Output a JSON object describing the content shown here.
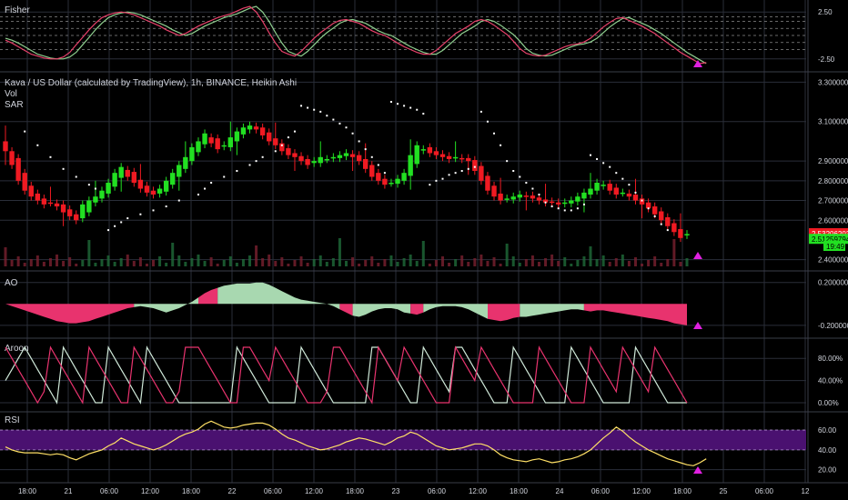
{
  "colors": {
    "background": "#000000",
    "text": "#d1d4dc",
    "grid": "#2a2e39",
    "separator": "#3a3e49",
    "bull": "#22e022",
    "bear": "#f01a22",
    "sar": "#ffffff",
    "fisher_main": "#e8416a",
    "fisher_trigger": "#8fcf8f",
    "ao_pos": "#a8d8b0",
    "ao_neg": "#e8336e",
    "aroon_up": "#e8336e",
    "aroon_down": "#cfe8d8",
    "rsi_line": "#ffe066",
    "rsi_band": "#4a1170",
    "alert_marker": "#e020e0",
    "volume": "#2e7d5b"
  },
  "x_axis": {
    "labels": [
      "18:00",
      "21",
      "06:00",
      "12:00",
      "18:00",
      "22",
      "06:00",
      "12:00",
      "18:00",
      "23",
      "06:00",
      "12:00",
      "18:00",
      "24",
      "06:00",
      "12:00",
      "18:00",
      "25",
      "06:00",
      "12"
    ],
    "positions": [
      30,
      75,
      120,
      165,
      210,
      255,
      300,
      345,
      390,
      435,
      480,
      525,
      570,
      615,
      660,
      705,
      750,
      795,
      840,
      885
    ]
  },
  "fisher": {
    "title": "Fisher",
    "y_ticks": [
      "2.50",
      "-2.50"
    ],
    "y_tick_values": [
      2.5,
      -2.5
    ],
    "y_min": -3.2,
    "y_max": 3.2,
    "dashed_levels": [
      2.0,
      1.5,
      0.75,
      0,
      -0.75,
      -1.5
    ],
    "main": [
      -0.5,
      -0.8,
      -1.2,
      -1.6,
      -2.0,
      -2.2,
      -2.4,
      -2.5,
      -2.5,
      -2.3,
      -1.8,
      -1.0,
      -0.2,
      0.6,
      1.3,
      1.9,
      2.2,
      2.4,
      2.5,
      2.4,
      2.2,
      1.9,
      1.6,
      1.3,
      1.0,
      0.6,
      0.3,
      0.0,
      0.2,
      0.6,
      1.0,
      1.3,
      1.6,
      1.9,
      2.1,
      2.3,
      2.6,
      2.9,
      3.1,
      2.5,
      1.5,
      0.3,
      -0.8,
      -1.7,
      -2.0,
      -2.2,
      -1.7,
      -1.0,
      -0.3,
      0.3,
      0.8,
      1.3,
      1.6,
      1.7,
      1.5,
      1.3,
      0.9,
      0.5,
      0.2,
      0.0,
      -0.4,
      -0.8,
      -1.2,
      -1.5,
      -1.8,
      -2.0,
      -2.0,
      -1.6,
      -1.0,
      -0.4,
      0.2,
      0.6,
      1.0,
      1.5,
      1.7,
      1.5,
      1.1,
      0.6,
      0.1,
      -0.6,
      -1.4,
      -1.9,
      -2.1,
      -2.2,
      -2.1,
      -1.8,
      -1.5,
      -1.2,
      -1.0,
      -0.9,
      -0.7,
      -0.3,
      0.3,
      0.9,
      1.4,
      1.8,
      1.9,
      1.6,
      1.3,
      1.0,
      0.6,
      0.2,
      -0.3,
      -0.8,
      -1.3,
      -1.8,
      -2.2,
      -2.6,
      -3.0,
      -2.9
    ],
    "trigger": [
      -0.3,
      -0.5,
      -0.8,
      -1.2,
      -1.6,
      -2.0,
      -2.2,
      -2.4,
      -2.5,
      -2.5,
      -2.3,
      -1.8,
      -1.0,
      -0.2,
      0.6,
      1.3,
      1.9,
      2.2,
      2.4,
      2.5,
      2.4,
      2.2,
      1.9,
      1.6,
      1.3,
      1.0,
      0.6,
      0.3,
      0.0,
      0.2,
      0.6,
      1.0,
      1.3,
      1.6,
      1.9,
      2.1,
      2.3,
      2.6,
      2.9,
      3.1,
      2.5,
      1.5,
      0.3,
      -0.8,
      -1.7,
      -2.0,
      -2.2,
      -1.7,
      -1.0,
      -0.3,
      0.3,
      0.8,
      1.3,
      1.6,
      1.7,
      1.5,
      1.3,
      0.9,
      0.5,
      0.2,
      0.0,
      -0.4,
      -0.8,
      -1.2,
      -1.5,
      -1.8,
      -2.0,
      -2.0,
      -1.6,
      -1.0,
      -0.4,
      0.2,
      0.6,
      1.0,
      1.5,
      1.7,
      1.5,
      1.1,
      0.6,
      0.1,
      -0.6,
      -1.4,
      -1.9,
      -2.1,
      -2.2,
      -2.1,
      -1.8,
      -1.5,
      -1.2,
      -1.0,
      -0.9,
      -0.7,
      -0.3,
      0.3,
      0.9,
      1.4,
      1.8,
      1.9,
      1.6,
      1.3,
      1.0,
      0.6,
      0.2,
      -0.3,
      -0.8,
      -1.3,
      -1.8,
      -2.2,
      -2.6,
      -3.0
    ]
  },
  "price": {
    "title": "Kava / US Dollar (calculated by TradingView), 1h, BINANCE, Heikin Ashi",
    "legend_vol": "Vol",
    "legend_sar": "SAR",
    "y_ticks": [
      "3.30000000",
      "3.10000000",
      "2.90000000",
      "2.80000000",
      "2.70000000",
      "2.60000000",
      "2.40000000"
    ],
    "y_tick_values": [
      3.3,
      3.1,
      2.9,
      2.8,
      2.7,
      2.6,
      2.4
    ],
    "y_min": 2.38,
    "y_max": 3.32,
    "current_close_label": "2.53206203",
    "current_open_label": "2.51259794",
    "countdown_label": "19:49",
    "current_close": 2.532,
    "current_open": 2.5126,
    "close_series": [
      2.95,
      2.88,
      2.8,
      2.75,
      2.72,
      2.7,
      2.68,
      2.69,
      2.67,
      2.64,
      2.62,
      2.6,
      2.68,
      2.7,
      2.72,
      2.75,
      2.79,
      2.84,
      2.87,
      2.82,
      2.79,
      2.76,
      2.74,
      2.73,
      2.76,
      2.8,
      2.84,
      2.88,
      2.92,
      2.97,
      3.0,
      3.04,
      2.99,
      2.96,
      2.98,
      3.02,
      3.05,
      3.07,
      3.08,
      3.06,
      3.03,
      3.0,
      2.98,
      2.95,
      2.93,
      2.92,
      2.9,
      2.88,
      2.9,
      2.92,
      2.91,
      2.92,
      2.93,
      2.94,
      2.92,
      2.9,
      2.86,
      2.82,
      2.8,
      2.78,
      2.79,
      2.81,
      2.84,
      2.93,
      2.98,
      2.96,
      2.94,
      2.93,
      2.92,
      2.91,
      2.92,
      2.91,
      2.9,
      2.85,
      2.8,
      2.75,
      2.72,
      2.7,
      2.71,
      2.72,
      2.73,
      2.72,
      2.71,
      2.7,
      2.69,
      2.69,
      2.68,
      2.69,
      2.7,
      2.72,
      2.74,
      2.76,
      2.79,
      2.78,
      2.75,
      2.73,
      2.74,
      2.72,
      2.7,
      2.68,
      2.66,
      2.63,
      2.6,
      2.57,
      2.54,
      2.51,
      2.53
    ],
    "sar_dots": [
      [
        3,
        3.05
      ],
      [
        5,
        2.98
      ],
      [
        7,
        2.92
      ],
      [
        9,
        2.86
      ],
      [
        11,
        2.82
      ],
      [
        13,
        2.78
      ],
      [
        14,
        2.76
      ],
      [
        16,
        2.55
      ],
      [
        17,
        2.57
      ],
      [
        18,
        2.59
      ],
      [
        19,
        2.61
      ],
      [
        21,
        2.63
      ],
      [
        23,
        2.65
      ],
      [
        25,
        2.67
      ],
      [
        27,
        2.7
      ],
      [
        30,
        2.73
      ],
      [
        31,
        2.76
      ],
      [
        32,
        2.79
      ],
      [
        34,
        2.82
      ],
      [
        36,
        2.85
      ],
      [
        38,
        2.88
      ],
      [
        39,
        2.9
      ],
      [
        40,
        2.92
      ],
      [
        42,
        2.95
      ],
      [
        43,
        2.98
      ],
      [
        44,
        3.02
      ],
      [
        45,
        3.05
      ],
      [
        46,
        3.18
      ],
      [
        47,
        3.17
      ],
      [
        48,
        3.16
      ],
      [
        49,
        3.15
      ],
      [
        50,
        3.13
      ],
      [
        51,
        3.11
      ],
      [
        52,
        3.09
      ],
      [
        53,
        3.07
      ],
      [
        54,
        3.04
      ],
      [
        55,
        3.0
      ],
      [
        56,
        2.96
      ],
      [
        57,
        2.92
      ],
      [
        58,
        2.88
      ],
      [
        59,
        2.84
      ],
      [
        60,
        3.2
      ],
      [
        61,
        3.19
      ],
      [
        62,
        3.18
      ],
      [
        63,
        3.17
      ],
      [
        64,
        3.16
      ],
      [
        65,
        3.14
      ],
      [
        66,
        2.78
      ],
      [
        67,
        2.8
      ],
      [
        68,
        2.81
      ],
      [
        69,
        2.83
      ],
      [
        70,
        2.84
      ],
      [
        71,
        2.85
      ],
      [
        72,
        2.86
      ],
      [
        73,
        2.87
      ],
      [
        74,
        3.15
      ],
      [
        75,
        3.1
      ],
      [
        76,
        3.04
      ],
      [
        77,
        2.98
      ],
      [
        78,
        2.9
      ],
      [
        79,
        2.85
      ],
      [
        80,
        2.82
      ],
      [
        81,
        2.79
      ],
      [
        82,
        2.76
      ],
      [
        83,
        2.73
      ],
      [
        84,
        2.69
      ],
      [
        85,
        2.67
      ],
      [
        86,
        2.66
      ],
      [
        87,
        2.65
      ],
      [
        88,
        2.65
      ],
      [
        89,
        2.66
      ],
      [
        90,
        2.68
      ],
      [
        91,
        2.93
      ],
      [
        92,
        2.91
      ],
      [
        93,
        2.89
      ],
      [
        94,
        2.87
      ],
      [
        95,
        2.84
      ],
      [
        96,
        2.81
      ],
      [
        97,
        2.78
      ],
      [
        98,
        2.74
      ],
      [
        99,
        2.7
      ],
      [
        100,
        2.66
      ],
      [
        101,
        2.62
      ],
      [
        102,
        2.58
      ],
      [
        103,
        2.55
      ]
    ]
  },
  "ao": {
    "title": "AO",
    "y_ticks": [
      "0.20000000",
      "-0.20000000"
    ],
    "y_tick_values": [
      0.2,
      -0.2
    ],
    "y_min": -0.26,
    "y_max": 0.24,
    "values": [
      0.0,
      -0.02,
      -0.04,
      -0.06,
      -0.08,
      -0.1,
      -0.12,
      -0.14,
      -0.16,
      -0.17,
      -0.18,
      -0.18,
      -0.17,
      -0.16,
      -0.14,
      -0.12,
      -0.1,
      -0.08,
      -0.06,
      -0.04,
      -0.03,
      -0.02,
      -0.03,
      -0.04,
      -0.06,
      -0.08,
      -0.06,
      -0.04,
      -0.01,
      0.02,
      0.06,
      0.1,
      0.13,
      0.15,
      0.17,
      0.18,
      0.19,
      0.19,
      0.19,
      0.2,
      0.2,
      0.18,
      0.15,
      0.12,
      0.09,
      0.06,
      0.04,
      0.03,
      0.02,
      0.01,
      0.0,
      -0.02,
      -0.05,
      -0.08,
      -0.11,
      -0.12,
      -0.1,
      -0.07,
      -0.05,
      -0.04,
      -0.04,
      -0.05,
      -0.08,
      -0.09,
      -0.1,
      -0.08,
      -0.05,
      -0.03,
      -0.02,
      -0.02,
      -0.02,
      -0.03,
      -0.05,
      -0.08,
      -0.11,
      -0.14,
      -0.15,
      -0.16,
      -0.15,
      -0.13,
      -0.12,
      -0.12,
      -0.11,
      -0.1,
      -0.09,
      -0.08,
      -0.07,
      -0.06,
      -0.05,
      -0.05,
      -0.06,
      -0.07,
      -0.06,
      -0.06,
      -0.07,
      -0.08,
      -0.09,
      -0.1,
      -0.11,
      -0.12,
      -0.13,
      -0.14,
      -0.15,
      -0.16,
      -0.18,
      -0.19,
      -0.2
    ],
    "color_runs": [
      [
        "neg",
        0,
        20
      ],
      [
        "pos",
        20,
        30
      ],
      [
        "neg",
        30,
        33
      ],
      [
        "pos",
        33,
        52
      ],
      [
        "neg",
        52,
        54
      ],
      [
        "pos",
        54,
        63
      ],
      [
        "neg",
        63,
        65
      ],
      [
        "pos",
        65,
        75
      ],
      [
        "neg",
        75,
        80
      ],
      [
        "pos",
        80,
        90
      ],
      [
        "neg",
        90,
        107
      ]
    ]
  },
  "aroon": {
    "title": "Aroon",
    "y_ticks": [
      "80.00%",
      "40.00%",
      "0.00%"
    ],
    "y_tick_values": [
      80,
      40,
      0
    ],
    "y_min": -5,
    "y_max": 105,
    "up": [
      100,
      80,
      60,
      40,
      20,
      0,
      20,
      100,
      80,
      60,
      40,
      20,
      0,
      100,
      80,
      60,
      40,
      20,
      0,
      0,
      100,
      80,
      60,
      40,
      20,
      0,
      0,
      20,
      100,
      100,
      100,
      80,
      60,
      40,
      20,
      0,
      0,
      100,
      100,
      80,
      60,
      40,
      100,
      80,
      60,
      40,
      20,
      0,
      0,
      0,
      20,
      100,
      100,
      80,
      60,
      40,
      20,
      0,
      100,
      80,
      60,
      40,
      100,
      80,
      60,
      40,
      20,
      0,
      0,
      0,
      100,
      80,
      60,
      40,
      100,
      80,
      60,
      40,
      20,
      0,
      0,
      0,
      0,
      100,
      80,
      60,
      40,
      20,
      0,
      0,
      0,
      100,
      80,
      60,
      40,
      20,
      100,
      80,
      60,
      40,
      20,
      100,
      80,
      60,
      40,
      20,
      0
    ],
    "down": [
      40,
      60,
      80,
      100,
      80,
      60,
      40,
      20,
      0,
      100,
      80,
      60,
      40,
      20,
      0,
      0,
      100,
      80,
      60,
      40,
      20,
      0,
      100,
      80,
      60,
      40,
      20,
      0,
      0,
      0,
      0,
      0,
      0,
      0,
      0,
      0,
      100,
      80,
      60,
      40,
      20,
      0,
      0,
      0,
      0,
      0,
      100,
      80,
      60,
      40,
      20,
      0,
      0,
      0,
      0,
      0,
      0,
      100,
      100,
      80,
      60,
      40,
      20,
      0,
      0,
      100,
      80,
      60,
      40,
      20,
      100,
      100,
      80,
      60,
      40,
      20,
      0,
      0,
      0,
      100,
      80,
      60,
      40,
      20,
      0,
      0,
      0,
      0,
      100,
      80,
      60,
      40,
      20,
      0,
      0,
      0,
      0,
      0,
      100,
      80,
      60,
      40,
      20,
      0,
      0,
      0,
      0
    ]
  },
  "rsi": {
    "title": "RSI",
    "y_ticks": [
      "60.00",
      "40.00",
      "20.00"
    ],
    "y_tick_values": [
      60,
      40,
      20
    ],
    "y_min": 16,
    "y_max": 72,
    "band": [
      40,
      60
    ],
    "values": [
      43,
      40,
      38,
      37,
      37,
      37,
      36,
      35,
      36,
      35,
      32,
      30,
      33,
      36,
      38,
      40,
      44,
      47,
      52,
      49,
      46,
      44,
      42,
      40,
      42,
      45,
      49,
      53,
      56,
      58,
      61,
      66,
      69,
      66,
      63,
      62,
      63,
      65,
      66,
      67,
      67,
      65,
      61,
      56,
      52,
      50,
      47,
      44,
      42,
      40,
      41,
      43,
      45,
      48,
      50,
      52,
      51,
      49,
      47,
      45,
      48,
      52,
      54,
      58,
      56,
      52,
      48,
      44,
      42,
      40,
      41,
      42,
      44,
      46,
      46,
      44,
      40,
      35,
      32,
      30,
      29,
      28,
      30,
      31,
      29,
      27,
      28,
      30,
      31,
      33,
      36,
      40,
      46,
      52,
      57,
      63,
      59,
      53,
      48,
      44,
      40,
      37,
      34,
      31,
      29,
      27,
      25,
      24,
      27,
      31
    ]
  }
}
